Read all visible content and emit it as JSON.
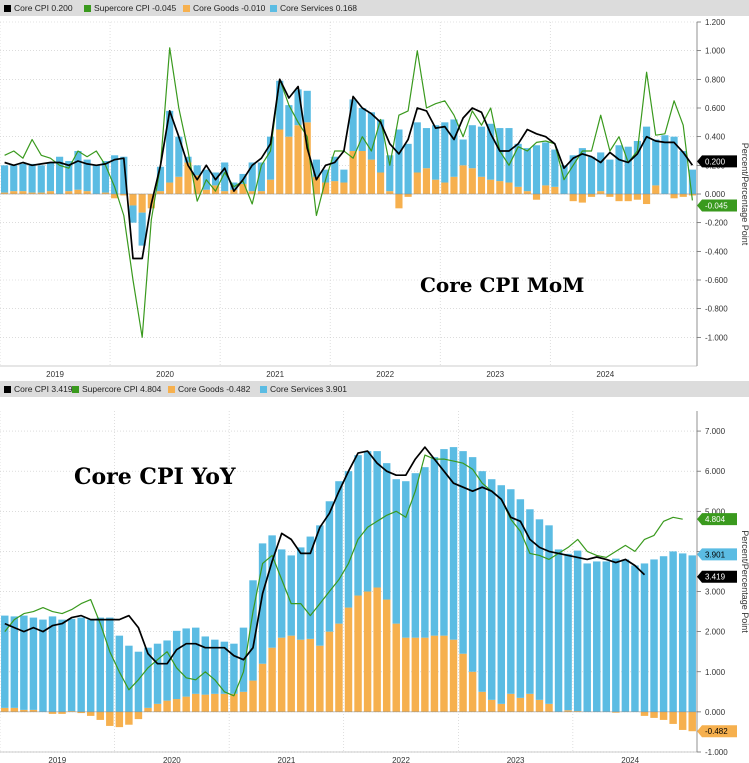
{
  "colors": {
    "core_cpi": "#000000",
    "supercore": "#3a9a1e",
    "goods": "#f6b04e",
    "services": "#5bbce3",
    "grid": "#c8c8c8"
  },
  "chart_data": [
    {
      "type": "bar",
      "title": "Core CPI MoM",
      "ylabel": "Percent/Percentage Point",
      "legend": [
        {
          "name": "Core CPI",
          "value": "0.200"
        },
        {
          "name": "Supercore CPI",
          "value": "-0.045"
        },
        {
          "name": "Core Goods",
          "value": "-0.010"
        },
        {
          "name": "Core Services",
          "value": "0.168"
        }
      ],
      "ylim": [
        -1.2,
        1.2
      ],
      "yticks": [
        "1.200",
        "1.000",
        "0.800",
        "0.600",
        "0.400",
        "0.200",
        "0.000",
        "-0.200",
        "-0.400",
        "-0.600",
        "-0.800",
        "-1.000"
      ],
      "x_labels": [
        "2019",
        "2020",
        "2021",
        "2022",
        "2023",
        "2024"
      ],
      "end_labels": [
        {
          "series": "Core CPI",
          "text": "0.200"
        },
        {
          "series": "Supercore CPI",
          "text": "-0.045"
        }
      ],
      "x_start": "2019-01",
      "series": [
        {
          "name": "Core Goods",
          "values": [
            0.01,
            0.02,
            0.02,
            0.01,
            0.01,
            0.02,
            0.0,
            0.02,
            0.03,
            0.02,
            0.0,
            0.01,
            -0.03,
            -0.01,
            -0.08,
            -0.13,
            -0.1,
            0.02,
            0.08,
            0.12,
            0.22,
            0.13,
            0.03,
            0.06,
            0.02,
            0.03,
            0.07,
            0.02,
            0.02,
            0.1,
            0.45,
            0.4,
            0.48,
            0.5,
            0.12,
            0.08,
            0.09,
            0.08,
            0.3,
            0.3,
            0.24,
            0.15,
            0.02,
            -0.1,
            -0.02,
            0.15,
            0.18,
            0.1,
            0.08,
            0.12,
            0.2,
            0.18,
            0.12,
            0.1,
            0.09,
            0.08,
            0.05,
            0.02,
            -0.04,
            0.06,
            0.05,
            0.0,
            -0.05,
            -0.06,
            -0.02,
            0.02,
            -0.02,
            -0.05,
            -0.05,
            -0.04,
            -0.07,
            0.06,
            0.0,
            -0.03,
            -0.02,
            -0.01
          ]
        },
        {
          "name": "Core Services",
          "values": [
            0.19,
            0.18,
            0.19,
            0.2,
            0.19,
            0.2,
            0.26,
            0.21,
            0.27,
            0.22,
            0.2,
            0.22,
            0.27,
            0.26,
            -0.12,
            -0.23,
            0.0,
            0.17,
            0.5,
            0.28,
            0.04,
            0.07,
            0.14,
            0.09,
            0.2,
            0.05,
            0.07,
            0.2,
            0.2,
            0.3,
            0.34,
            0.22,
            0.25,
            0.22,
            0.12,
            0.09,
            0.17,
            0.09,
            0.36,
            0.3,
            0.33,
            0.37,
            0.25,
            0.45,
            0.35,
            0.35,
            0.28,
            0.38,
            0.42,
            0.4,
            0.18,
            0.3,
            0.35,
            0.39,
            0.37,
            0.38,
            0.3,
            0.3,
            0.34,
            0.3,
            0.26,
            0.2,
            0.27,
            0.32,
            0.26,
            0.27,
            0.24,
            0.34,
            0.33,
            0.37,
            0.47,
            0.32,
            0.41,
            0.4,
            0.3,
            0.17
          ]
        },
        {
          "name": "Core CPI",
          "values": [
            0.22,
            0.2,
            0.22,
            0.2,
            0.21,
            0.22,
            0.22,
            0.2,
            0.23,
            0.21,
            0.2,
            0.21,
            0.24,
            0.25,
            -0.45,
            -0.45,
            -0.07,
            0.2,
            0.58,
            0.4,
            0.2,
            0.1,
            0.2,
            0.1,
            0.18,
            0.02,
            0.1,
            0.2,
            0.25,
            0.35,
            0.8,
            0.67,
            0.75,
            0.32,
            0.1,
            0.2,
            0.22,
            0.3,
            0.68,
            0.6,
            0.56,
            0.5,
            0.35,
            0.28,
            0.38,
            0.6,
            0.58,
            0.46,
            0.47,
            0.38,
            0.53,
            0.6,
            0.57,
            0.42,
            0.3,
            0.3,
            0.35,
            0.45,
            0.42,
            0.4,
            0.35,
            0.18,
            0.25,
            0.28,
            0.26,
            0.22,
            0.29,
            0.24,
            0.22,
            0.28,
            0.4,
            0.37,
            0.36,
            0.36,
            0.29,
            0.2
          ]
        },
        {
          "name": "Supercore CPI",
          "values": [
            0.27,
            0.3,
            0.25,
            0.38,
            0.27,
            0.25,
            0.2,
            0.18,
            0.3,
            0.26,
            0.3,
            0.2,
            0.05,
            -0.15,
            -0.6,
            -1.0,
            -0.18,
            0.2,
            1.02,
            0.6,
            0.3,
            -0.05,
            0.1,
            0.02,
            0.15,
            0.05,
            0.09,
            -0.07,
            0.2,
            0.3,
            0.8,
            0.62,
            0.5,
            0.4,
            -0.15,
            0.1,
            0.3,
            0.3,
            0.25,
            0.4,
            0.3,
            0.52,
            0.2,
            0.55,
            0.58,
            1.0,
            0.6,
            0.63,
            0.65,
            0.55,
            0.4,
            0.58,
            0.48,
            0.6,
            0.3,
            0.2,
            0.33,
            0.3,
            0.36,
            0.37,
            0.35,
            0.1,
            0.2,
            0.3,
            0.3,
            0.55,
            0.3,
            0.4,
            0.22,
            0.3,
            0.85,
            0.41,
            0.42,
            0.65,
            0.48,
            -0.045
          ]
        }
      ]
    },
    {
      "type": "bar",
      "title": "Core CPI YoY",
      "ylabel": "Percent/Percentage Point",
      "legend": [
        {
          "name": "Core CPI",
          "value": "3.419"
        },
        {
          "name": "Supercore CPI",
          "value": "4.804"
        },
        {
          "name": "Core Goods",
          "value": "-0.482"
        },
        {
          "name": "Core Services",
          "value": "3.901"
        }
      ],
      "ylim": [
        -1,
        7.5
      ],
      "yticks": [
        "7.000",
        "6.000",
        "5.000",
        "4.000",
        "3.000",
        "2.000",
        "1.000",
        "0.000",
        "-1.000"
      ],
      "x_labels": [
        "2019",
        "2020",
        "2021",
        "2022",
        "2023",
        "2024"
      ],
      "end_labels": [
        {
          "series": "Supercore CPI",
          "text": "4.804"
        },
        {
          "series": "Core Services",
          "text": "3.901"
        },
        {
          "series": "Core CPI",
          "text": "3.419"
        },
        {
          "series": "Core Goods",
          "text": "-0.482"
        }
      ],
      "x_start": "2019-01",
      "series": [
        {
          "name": "Core Goods",
          "values": [
            0.1,
            0.1,
            0.05,
            0.05,
            0.0,
            -0.05,
            -0.05,
            0.02,
            -0.03,
            -0.1,
            -0.2,
            -0.35,
            -0.38,
            -0.32,
            -0.18,
            0.1,
            0.2,
            0.28,
            0.32,
            0.38,
            0.45,
            0.43,
            0.45,
            0.45,
            0.45,
            0.5,
            0.78,
            1.2,
            1.6,
            1.85,
            1.9,
            1.8,
            1.82,
            1.65,
            2.0,
            2.2,
            2.6,
            2.9,
            3.0,
            3.1,
            2.8,
            2.2,
            1.85,
            1.85,
            1.85,
            1.9,
            1.9,
            1.8,
            1.45,
            1.0,
            0.5,
            0.3,
            0.2,
            0.45,
            0.35,
            0.45,
            0.3,
            0.2,
            0.0,
            0.04,
            0.02,
            0.0,
            0.0,
            0.0,
            -0.02,
            0.0,
            0.0,
            -0.1,
            -0.15,
            -0.2,
            -0.3,
            -0.45,
            -0.482
          ]
        },
        {
          "name": "Core Services",
          "values": [
            2.3,
            2.28,
            2.35,
            2.3,
            2.3,
            2.38,
            2.3,
            2.3,
            2.35,
            2.3,
            2.35,
            2.35,
            1.9,
            1.65,
            1.5,
            1.5,
            1.5,
            1.5,
            1.7,
            1.7,
            1.65,
            1.45,
            1.35,
            1.3,
            1.25,
            1.6,
            2.5,
            3.0,
            2.8,
            2.2,
            2.0,
            2.3,
            2.55,
            3.0,
            3.25,
            3.55,
            3.4,
            3.5,
            3.5,
            3.4,
            3.4,
            3.6,
            3.9,
            4.1,
            4.25,
            4.45,
            4.65,
            4.8,
            5.05,
            5.35,
            5.5,
            5.5,
            5.45,
            5.1,
            4.95,
            4.6,
            4.5,
            4.45,
            4.05,
            3.9,
            4.0,
            3.7,
            3.75,
            3.75,
            3.82,
            3.8,
            3.65,
            3.7,
            3.8,
            3.88,
            4.0,
            3.95,
            3.901
          ]
        },
        {
          "name": "Core CPI",
          "values": [
            2.2,
            2.1,
            2.0,
            2.1,
            2.0,
            2.15,
            2.2,
            2.35,
            2.4,
            2.3,
            2.3,
            2.3,
            2.3,
            2.4,
            2.1,
            1.45,
            1.2,
            1.2,
            1.55,
            1.7,
            1.7,
            1.6,
            1.6,
            1.6,
            1.4,
            1.3,
            1.6,
            2.95,
            3.75,
            4.45,
            4.3,
            3.95,
            3.95,
            4.6,
            4.95,
            5.5,
            6.0,
            6.45,
            6.5,
            6.2,
            6.0,
            5.9,
            5.9,
            6.3,
            6.6,
            6.3,
            6.0,
            5.7,
            5.6,
            5.5,
            5.6,
            5.5,
            5.3,
            4.85,
            4.75,
            4.3,
            4.1,
            4.0,
            3.95,
            3.9,
            3.85,
            3.8,
            3.86,
            3.8,
            3.72,
            3.8,
            3.65,
            3.419
          ]
        },
        {
          "name": "Supercore CPI",
          "values": [
            2.0,
            2.3,
            2.45,
            2.5,
            2.6,
            2.5,
            2.45,
            2.55,
            2.7,
            2.8,
            2.2,
            1.5,
            1.0,
            0.55,
            0.8,
            1.1,
            1.3,
            1.5,
            1.1,
            0.85,
            0.8,
            1.0,
            0.8,
            0.5,
            0.4,
            1.0,
            2.5,
            3.7,
            3.9,
            3.3,
            2.7,
            2.7,
            2.4,
            2.7,
            3.0,
            3.3,
            3.7,
            4.3,
            4.6,
            4.75,
            4.9,
            5.0,
            4.85,
            5.5,
            6.4,
            6.3,
            6.3,
            6.25,
            6.2,
            6.05,
            5.7,
            5.5,
            5.3,
            4.8,
            4.5,
            3.95,
            3.9,
            3.8,
            3.95,
            4.1,
            4.3,
            4.0,
            3.9,
            3.85,
            4.0,
            4.15,
            4.0,
            4.3,
            4.4,
            4.75,
            4.85,
            4.804
          ]
        }
      ]
    }
  ]
}
